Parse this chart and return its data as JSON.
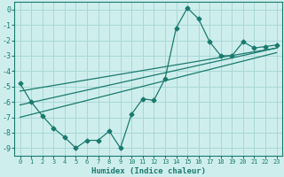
{
  "xlabel": "Humidex (Indice chaleur)",
  "x": [
    0,
    1,
    2,
    3,
    4,
    5,
    6,
    7,
    8,
    9,
    10,
    11,
    12,
    13,
    14,
    15,
    16,
    17,
    18,
    19,
    20,
    21,
    22,
    23
  ],
  "y_main": [
    -4.8,
    -6.0,
    -6.9,
    -7.7,
    -8.3,
    -9.0,
    -8.5,
    -8.5,
    -7.9,
    -9.0,
    -6.8,
    -5.8,
    -5.9,
    -4.5,
    -1.2,
    0.1,
    -0.6,
    -2.1,
    -3.0,
    -3.0,
    -2.1,
    -2.5,
    -2.4,
    -2.3
  ],
  "line_color": "#1a7a6e",
  "marker": "D",
  "marker_size": 2.5,
  "bg_color": "#ceeeed",
  "grid_color": "#a8d8d5",
  "text_color": "#1a7a6e",
  "ylim": [
    -9.5,
    0.5
  ],
  "xlim": [
    -0.5,
    23.5
  ],
  "yticks": [
    0,
    -1,
    -2,
    -3,
    -4,
    -5,
    -6,
    -7,
    -8,
    -9
  ],
  "xticks": [
    0,
    1,
    2,
    3,
    4,
    5,
    6,
    7,
    8,
    9,
    10,
    11,
    12,
    13,
    14,
    15,
    16,
    17,
    18,
    19,
    20,
    21,
    22,
    23
  ],
  "trend1_x": [
    0,
    23
  ],
  "trend1_y": [
    -6.2,
    -2.5
  ],
  "trend2_x": [
    0,
    23
  ],
  "trend2_y": [
    -5.3,
    -2.5
  ],
  "trend3_x": [
    0,
    23
  ],
  "trend3_y": [
    -7.0,
    -2.8
  ]
}
